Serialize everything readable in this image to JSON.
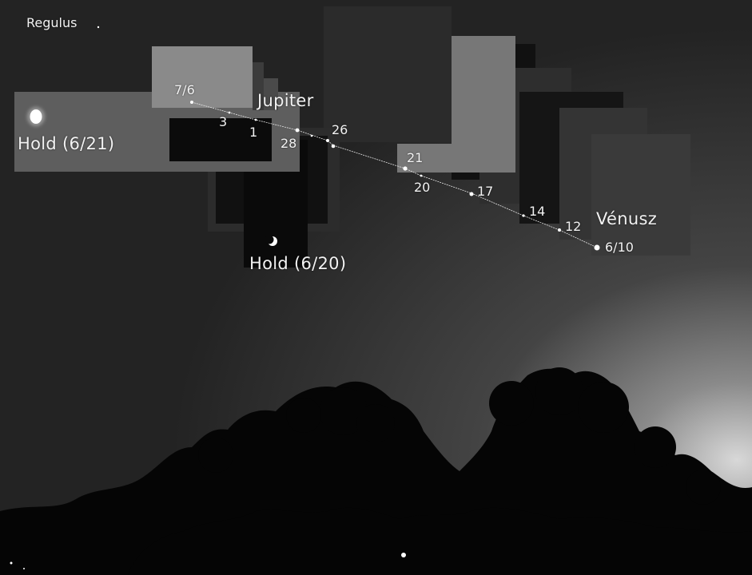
{
  "labels": {
    "regulus": "Regulus",
    "jupiter": "Jupiter",
    "venus": "Vénusz",
    "moon_21": "Hold (6/21)",
    "moon_20": "Hold (6/20)"
  },
  "dates": {
    "d_7_6": "7/6",
    "d_3": "3",
    "d_1": "1",
    "d_28": "28",
    "d_26": "26",
    "d_21": "21",
    "d_20": "20",
    "d_17": "17",
    "d_14": "14",
    "d_12": "12",
    "d_6_10": "6/10"
  },
  "colors": {
    "sky_top": "#202020",
    "sky_mid": "#2a2a2a",
    "sky_horizon": "#cfcfcf",
    "trees": "#050505",
    "label": "#f2f2f2",
    "path_line": "#e6e6e6"
  }
}
